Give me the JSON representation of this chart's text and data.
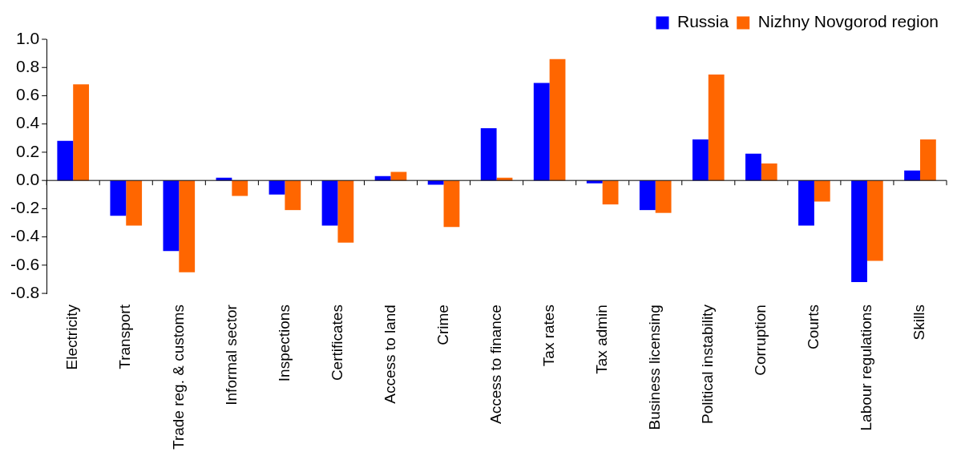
{
  "chart_data": {
    "type": "bar",
    "categories": [
      "Electricity",
      "Transport",
      "Trade reg. & customs",
      "Informal sector",
      "Inspections",
      "Certificates",
      "Access to land",
      "Crime",
      "Access to finance",
      "Tax rates",
      "Tax admin",
      "Business licensing",
      "Political instability",
      "Corruption",
      "Courts",
      "Labour regulations",
      "Skills"
    ],
    "series": [
      {
        "name": "Russia",
        "color": "#0000ff",
        "values": [
          0.28,
          -0.25,
          -0.5,
          0.02,
          -0.1,
          -0.32,
          0.03,
          -0.03,
          0.37,
          0.69,
          -0.02,
          -0.21,
          0.29,
          0.19,
          -0.32,
          -0.72,
          0.07
        ]
      },
      {
        "name": "Nizhny Novgorod region",
        "color": "#ff6600",
        "values": [
          0.68,
          -0.32,
          -0.65,
          -0.11,
          -0.21,
          -0.44,
          0.06,
          -0.33,
          0.02,
          0.86,
          -0.17,
          -0.23,
          0.75,
          0.12,
          -0.15,
          -0.57,
          0.29
        ]
      }
    ],
    "ylim": [
      -0.8,
      1.0
    ],
    "yticks": [
      {
        "value": -0.8,
        "label": "-0.8"
      },
      {
        "value": -0.6,
        "label": "-0.6"
      },
      {
        "value": -0.4,
        "label": "-0.4"
      },
      {
        "value": -0.2,
        "label": "-0.2"
      },
      {
        "value": 0,
        "label": "0.0"
      },
      {
        "value": 0.2,
        "label": "0.2"
      },
      {
        "value": 0.4,
        "label": "0.4"
      },
      {
        "value": 0.6,
        "label": "0.6"
      },
      {
        "value": 0.8,
        "label": "0.8"
      },
      {
        "value": 1,
        "label": "1.0"
      }
    ],
    "legend": "top right"
  }
}
